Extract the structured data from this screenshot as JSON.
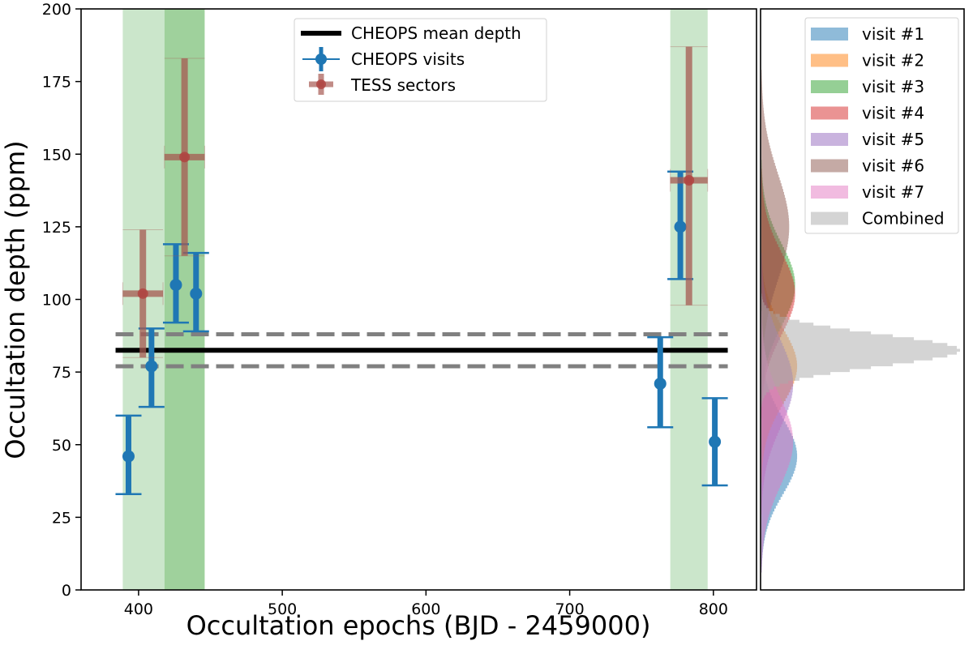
{
  "chart_data": {
    "type": "scatter",
    "xlabel": "Occultation epochs (BJD - 2459000)",
    "ylabel": "Occultation depth (ppm)",
    "xlim": [
      360,
      830
    ],
    "ylim": [
      0,
      200
    ],
    "xticks": [
      400,
      500,
      600,
      700,
      800
    ],
    "yticks": [
      0,
      25,
      50,
      75,
      100,
      125,
      150,
      175,
      200
    ],
    "mean_depth": {
      "label": "CHEOPS mean depth",
      "value": 82.5,
      "lower": 77,
      "upper": 88,
      "x_range": [
        384,
        810
      ]
    },
    "tess_spans": [
      {
        "x0": 389,
        "x1": 418,
        "shade": "light"
      },
      {
        "x0": 418,
        "x1": 446,
        "shade": "dark"
      },
      {
        "x0": 770,
        "x1": 796,
        "shade": "light"
      }
    ],
    "cheops_visits": {
      "label": "CHEOPS visits",
      "points": [
        {
          "x": 393,
          "y": 46,
          "lo": 33,
          "hi": 60
        },
        {
          "x": 409,
          "y": 77,
          "lo": 63,
          "hi": 90
        },
        {
          "x": 426,
          "y": 105,
          "lo": 92,
          "hi": 119
        },
        {
          "x": 440,
          "y": 102,
          "lo": 89,
          "hi": 116
        },
        {
          "x": 763,
          "y": 71,
          "lo": 56,
          "hi": 87
        },
        {
          "x": 777,
          "y": 125,
          "lo": 107,
          "hi": 144
        },
        {
          "x": 801,
          "y": 51,
          "lo": 36,
          "hi": 66
        }
      ]
    },
    "tess_sectors": {
      "label": "TESS sectors",
      "points": [
        {
          "x": 403,
          "xerr": 14,
          "y": 102,
          "lo": 80,
          "hi": 124
        },
        {
          "x": 432,
          "xerr": 14,
          "y": 149,
          "lo": 115,
          "hi": 183
        },
        {
          "x": 783,
          "xerr": 13,
          "y": 141,
          "lo": 98,
          "hi": 187
        }
      ]
    },
    "histograms": [
      {
        "name": "visit #1",
        "color": "#1f77b4",
        "mean": 46,
        "sd": 13,
        "peak": 0.18
      },
      {
        "name": "visit #2",
        "color": "#ff7f0e",
        "mean": 77,
        "sd": 13,
        "peak": 0.18
      },
      {
        "name": "visit #3",
        "color": "#2ca02c",
        "mean": 105,
        "sd": 14,
        "peak": 0.17
      },
      {
        "name": "visit #4",
        "color": "#d62728",
        "mean": 102,
        "sd": 14,
        "peak": 0.17
      },
      {
        "name": "visit #5",
        "color": "#9467bd",
        "mean": 71,
        "sd": 15,
        "peak": 0.16
      },
      {
        "name": "visit #6",
        "color": "#8c564b",
        "mean": 125,
        "sd": 18,
        "peak": 0.14
      },
      {
        "name": "visit #7",
        "color": "#e377c2",
        "mean": 51,
        "sd": 15,
        "peak": 0.16
      },
      {
        "name": "Combined",
        "color": "#aaaaaa",
        "mean": 82.5,
        "sd": 5.5,
        "peak": 1.0
      }
    ]
  },
  "colors": {
    "cheops": "#1f77b4",
    "tess": "#a65a52",
    "span_light": "#cbe6cb",
    "span_dark": "#9fd19c",
    "mean_line": "#000000",
    "band_line": "#808080"
  }
}
